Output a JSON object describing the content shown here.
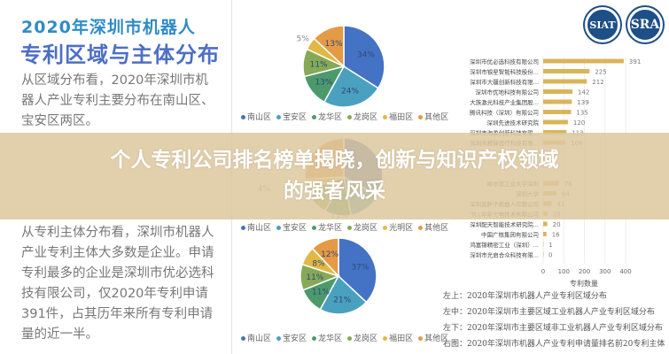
{
  "title_line1": "2020年深圳市机器人",
  "title_line2": "专利区域与主体分布",
  "para1": "从区域分布看，2020年深圳市机器人产业专利主要分布在南山区、宝安区两区。",
  "para2": "从专利主体分布看，深圳市机器人产业专利主体大多数是企业。申请专利最多的企业是深圳市优必选科技有限公司，仅2020年专利申请391件，占其历年来所有专利申请量的近一半。",
  "banner": {
    "line1": "个人专利公司排名榜单揭晓，创新与知识产权领域",
    "line2": "的强者风采"
  },
  "logos": {
    "siat": "SIAT",
    "sra": "SRA"
  },
  "captions": [
    "左上：2020年深圳市机器人产业专利区域分布",
    "左中：2020年深圳市主要区域工业机器人产业专利区域分布",
    "左下：2020年深圳市主要区域非工业机器人产业专利区域分布",
    "右图：2020年深圳市机器人产业专利申请量排名前20专利主体"
  ],
  "colors": [
    "#4472c4",
    "#4aa0bf",
    "#4c9a6c",
    "#86a957",
    "#e2b845",
    "#e59a45"
  ],
  "chart_data": [
    {
      "type": "pie",
      "legend": [
        "南山区",
        "宝安区",
        "龙华区",
        "龙岗区",
        "福田区",
        "其他区"
      ],
      "values": [
        34,
        24,
        13,
        11,
        5,
        13
      ],
      "labels": [
        "34%",
        "24%",
        "13%",
        "11%",
        "5%",
        "13%"
      ],
      "legend_placement": "bottom"
    },
    {
      "type": "pie",
      "legend": [
        "南山区",
        "宝安区",
        "龙华区",
        "龙岗区",
        "光明区",
        "其他区"
      ],
      "values": [
        33,
        14,
        11,
        12,
        4,
        26
      ],
      "labels": [
        "",
        "",
        "11%",
        "",
        "4%",
        ""
      ],
      "legend_placement": "bottom"
    },
    {
      "type": "pie",
      "legend": [
        "南山区",
        "宝安区",
        "龙华区",
        "龙岗区",
        "福田区",
        "其他区"
      ],
      "values": [
        37,
        21,
        11,
        11,
        8,
        12
      ],
      "labels": [
        "37%",
        "21%",
        "11%",
        "11%",
        "8%",
        "12%"
      ],
      "legend_placement": "bottom"
    },
    {
      "type": "bar",
      "orientation": "horizontal",
      "xlabel": "专利数量",
      "xlim": [
        0,
        400
      ],
      "xticks": [
        "0",
        "100",
        "200",
        "300",
        "400"
      ],
      "categories": [
        "深圳市优必选科技有限公司",
        "深圳市银星智能科技股份...",
        "深圳市大疆创新科技有限...",
        "深圳市优地科技有限公司",
        "大族激光科技产业集团股...",
        "腾讯科技（深圳）有限公司",
        "深圳先进技术研究院",
        "深圳市海柔创新科技有限...",
        "深圳市精锋医疗科技有限...",
        "",
        "",
        "",
        "哈尔滨工业大学深圳",
        "深圳大学",
        "深圳蓝胖子机器人有限公司",
        "TCL华星光电技术有限公司",
        "深圳配天智能技术研究院...",
        "中国广核集团有限公司",
        "鸿富锦精密工业（深圳）...",
        "深圳市光启合众科技有限..."
      ],
      "values": [
        391,
        225,
        212,
        142,
        139,
        135,
        120,
        113,
        108,
        null,
        null,
        null,
        76,
        64,
        41,
        20,
        20,
        16,
        1,
        0
      ]
    }
  ]
}
